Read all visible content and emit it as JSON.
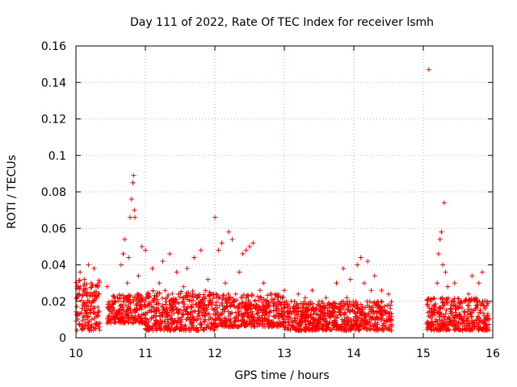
{
  "chart_data": {
    "type": "scatter",
    "title": "Day 111 of 2022, Rate Of TEC Index for receiver lsmh",
    "xlabel": "GPS time / hours",
    "ylabel": "ROTI / TECUs",
    "xlim": [
      10,
      16
    ],
    "ylim": [
      0,
      0.16
    ],
    "xticks": [
      10,
      11,
      12,
      13,
      14,
      15,
      16
    ],
    "xtick_labels": [
      "10",
      "11",
      "12",
      "13",
      "14",
      "15",
      "16"
    ],
    "yticks": [
      0,
      0.02,
      0.04,
      0.06,
      0.08,
      0.1,
      0.12,
      0.14,
      0.16
    ],
    "ytick_labels": [
      "0",
      "0.02",
      "0.04",
      "0.06",
      "0.08",
      "0.1",
      "0.12",
      "0.14",
      "0.16"
    ],
    "grid": true,
    "marker": "plus",
    "color": "#ff0000",
    "series": [
      {
        "name": "ROTI",
        "points": [
          [
            10.02,
            0.012
          ],
          [
            10.04,
            0.028
          ],
          [
            10.06,
            0.036
          ],
          [
            10.08,
            0.006
          ],
          [
            10.1,
            0.018
          ],
          [
            10.12,
            0.032
          ],
          [
            10.14,
            0.01
          ],
          [
            10.16,
            0.024
          ],
          [
            10.18,
            0.04
          ],
          [
            10.2,
            0.014
          ],
          [
            10.22,
            0.03
          ],
          [
            10.24,
            0.02
          ],
          [
            10.26,
            0.038
          ],
          [
            10.28,
            0.008
          ],
          [
            10.3,
            0.022
          ],
          [
            10.32,
            0.012
          ],
          [
            10.45,
            0.028
          ],
          [
            10.5,
            0.016
          ],
          [
            10.55,
            0.01
          ],
          [
            10.6,
            0.022
          ],
          [
            10.65,
            0.04
          ],
          [
            10.68,
            0.046
          ],
          [
            10.7,
            0.054
          ],
          [
            10.72,
            0.012
          ],
          [
            10.74,
            0.03
          ],
          [
            10.76,
            0.044
          ],
          [
            10.78,
            0.066
          ],
          [
            10.8,
            0.076
          ],
          [
            10.82,
            0.085
          ],
          [
            10.83,
            0.089
          ],
          [
            10.84,
            0.07
          ],
          [
            10.85,
            0.066
          ],
          [
            10.88,
            0.018
          ],
          [
            10.9,
            0.034
          ],
          [
            10.95,
            0.05
          ],
          [
            11.0,
            0.048
          ],
          [
            11.05,
            0.024
          ],
          [
            11.1,
            0.038
          ],
          [
            11.15,
            0.012
          ],
          [
            11.2,
            0.03
          ],
          [
            11.25,
            0.042
          ],
          [
            11.3,
            0.016
          ],
          [
            11.35,
            0.046
          ],
          [
            11.4,
            0.02
          ],
          [
            11.45,
            0.036
          ],
          [
            11.5,
            0.01
          ],
          [
            11.55,
            0.028
          ],
          [
            11.6,
            0.038
          ],
          [
            11.65,
            0.014
          ],
          [
            11.7,
            0.044
          ],
          [
            11.75,
            0.022
          ],
          [
            11.8,
            0.048
          ],
          [
            11.85,
            0.012
          ],
          [
            11.9,
            0.032
          ],
          [
            11.95,
            0.018
          ],
          [
            12.0,
            0.066
          ],
          [
            12.05,
            0.048
          ],
          [
            12.1,
            0.052
          ],
          [
            12.15,
            0.03
          ],
          [
            12.2,
            0.058
          ],
          [
            12.25,
            0.054
          ],
          [
            12.3,
            0.024
          ],
          [
            12.35,
            0.036
          ],
          [
            12.4,
            0.046
          ],
          [
            12.45,
            0.048
          ],
          [
            12.5,
            0.05
          ],
          [
            12.55,
            0.052
          ],
          [
            12.6,
            0.018
          ],
          [
            12.65,
            0.026
          ],
          [
            12.7,
            0.03
          ],
          [
            12.75,
            0.014
          ],
          [
            12.8,
            0.024
          ],
          [
            12.85,
            0.012
          ],
          [
            12.9,
            0.022
          ],
          [
            12.95,
            0.018
          ],
          [
            13.0,
            0.026
          ],
          [
            13.05,
            0.01
          ],
          [
            13.1,
            0.02
          ],
          [
            13.15,
            0.014
          ],
          [
            13.2,
            0.024
          ],
          [
            13.25,
            0.012
          ],
          [
            13.3,
            0.022
          ],
          [
            13.35,
            0.018
          ],
          [
            13.4,
            0.026
          ],
          [
            13.45,
            0.01
          ],
          [
            13.5,
            0.02
          ],
          [
            13.55,
            0.016
          ],
          [
            13.6,
            0.022
          ],
          [
            13.65,
            0.012
          ],
          [
            13.7,
            0.018
          ],
          [
            13.75,
            0.03
          ],
          [
            13.8,
            0.014
          ],
          [
            13.85,
            0.038
          ],
          [
            13.9,
            0.022
          ],
          [
            13.95,
            0.032
          ],
          [
            14.0,
            0.018
          ],
          [
            14.05,
            0.04
          ],
          [
            14.1,
            0.044
          ],
          [
            14.15,
            0.03
          ],
          [
            14.2,
            0.042
          ],
          [
            14.25,
            0.026
          ],
          [
            14.3,
            0.034
          ],
          [
            14.35,
            0.018
          ],
          [
            14.4,
            0.026
          ],
          [
            14.45,
            0.014
          ],
          [
            14.5,
            0.024
          ],
          [
            14.52,
            0.01
          ],
          [
            14.54,
            0.004
          ],
          [
            15.08,
            0.147
          ],
          [
            15.1,
            0.012
          ],
          [
            15.15,
            0.018
          ],
          [
            15.2,
            0.03
          ],
          [
            15.22,
            0.046
          ],
          [
            15.24,
            0.054
          ],
          [
            15.26,
            0.058
          ],
          [
            15.28,
            0.04
          ],
          [
            15.3,
            0.074
          ],
          [
            15.32,
            0.036
          ],
          [
            15.35,
            0.028
          ],
          [
            15.4,
            0.018
          ],
          [
            15.45,
            0.03
          ],
          [
            15.5,
            0.012
          ],
          [
            15.55,
            0.02
          ],
          [
            15.6,
            0.014
          ],
          [
            15.65,
            0.024
          ],
          [
            15.7,
            0.034
          ],
          [
            15.75,
            0.016
          ],
          [
            15.8,
            0.03
          ],
          [
            15.85,
            0.036
          ],
          [
            15.88,
            0.012
          ]
        ],
        "band_density": [
          {
            "x_range": [
              10.0,
              10.35
            ],
            "y_range": [
              0.004,
              0.032
            ]
          },
          {
            "x_range": [
              10.45,
              11.0
            ],
            "y_range": [
              0.008,
              0.024
            ]
          },
          {
            "x_range": [
              11.0,
              12.0
            ],
            "y_range": [
              0.004,
              0.026
            ]
          },
          {
            "x_range": [
              12.0,
              13.0
            ],
            "y_range": [
              0.006,
              0.024
            ]
          },
          {
            "x_range": [
              13.0,
              14.55
            ],
            "y_range": [
              0.004,
              0.02
            ]
          },
          {
            "x_range": [
              15.05,
              15.95
            ],
            "y_range": [
              0.004,
              0.022
            ]
          }
        ]
      }
    ]
  }
}
